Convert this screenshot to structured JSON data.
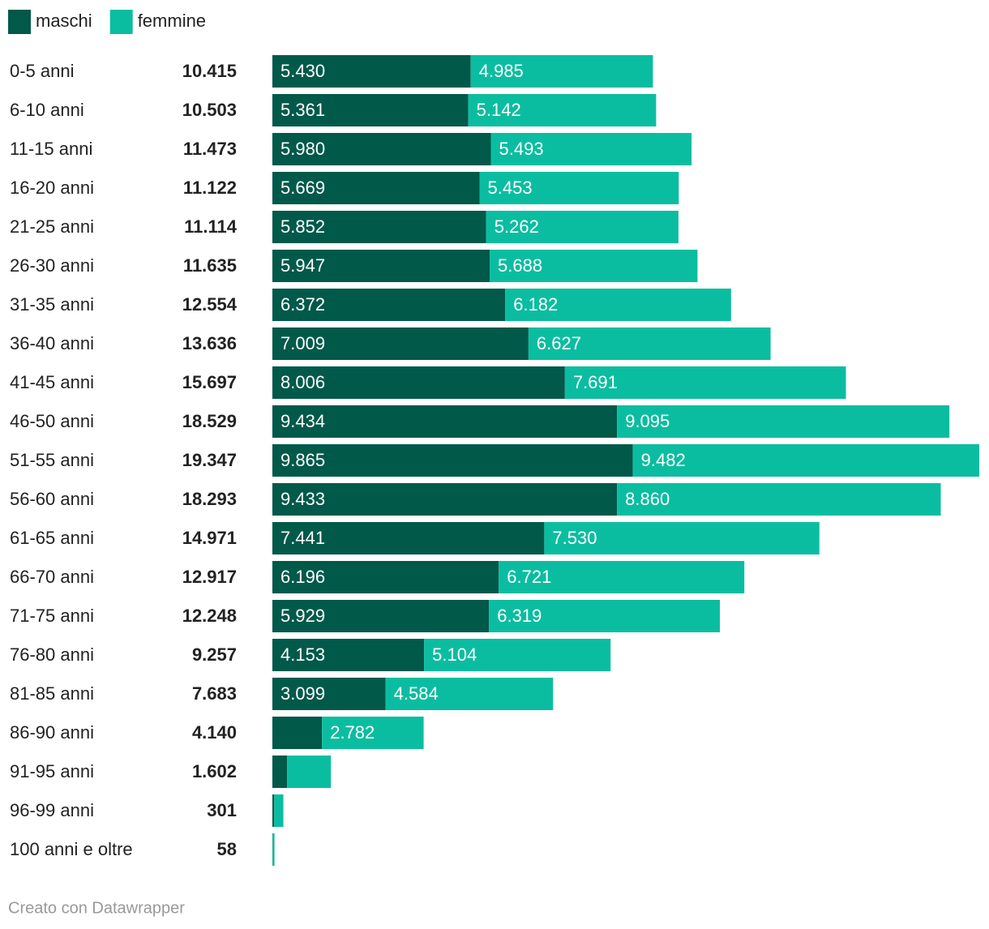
{
  "chart_data": {
    "type": "stacked-bar-horizontal",
    "categories": [
      "0-5 anni",
      "6-10 anni",
      "11-15 anni",
      "16-20 anni",
      "21-25 anni",
      "26-30 anni",
      "31-35 anni",
      "36-40 anni",
      "41-45 anni",
      "46-50 anni",
      "51-55 anni",
      "56-60 anni",
      "61-65 anni",
      "66-70 anni",
      "71-75 anni",
      "76-80 anni",
      "81-85 anni",
      "86-90 anni",
      "91-95 anni",
      "96-99 anni",
      "100 anni e oltre"
    ],
    "series": [
      {
        "name": "maschi",
        "color": "#01594a",
        "values": [
          5430,
          5361,
          5980,
          5669,
          5852,
          5947,
          6372,
          7009,
          8006,
          9434,
          9865,
          9433,
          7441,
          6196,
          5929,
          4153,
          3099,
          1358,
          402,
          50,
          8
        ],
        "value_labels": [
          "5.430",
          "5.361",
          "5.980",
          "5.669",
          "5.852",
          "5.947",
          "6.372",
          "7.009",
          "8.006",
          "9.434",
          "9.865",
          "9.433",
          "7.441",
          "6.196",
          "5.929",
          "4.153",
          "3.099",
          null,
          null,
          null,
          null
        ]
      },
      {
        "name": "femmine",
        "color": "#0bbda0",
        "values": [
          4985,
          5142,
          5493,
          5453,
          5262,
          5688,
          6182,
          6627,
          7691,
          9095,
          9482,
          8860,
          7530,
          6721,
          6319,
          5104,
          4584,
          2782,
          1200,
          251,
          50
        ],
        "value_labels": [
          "4.985",
          "5.142",
          "5.493",
          "5.453",
          "5.262",
          "5.688",
          "6.182",
          "6.627",
          "7.691",
          "9.095",
          "9.482",
          "8.860",
          "7.530",
          "6.721",
          "6.319",
          "5.104",
          "4.584",
          "2.782",
          null,
          null,
          null
        ]
      }
    ],
    "totals": {
      "values": [
        10415,
        10503,
        11473,
        11122,
        11114,
        11635,
        12554,
        13636,
        15697,
        18529,
        19347,
        18293,
        14971,
        12917,
        12248,
        9257,
        7683,
        4140,
        1602,
        301,
        58
      ],
      "labels": [
        "10.415",
        "10.503",
        "11.473",
        "11.122",
        "11.114",
        "11.635",
        "12.554",
        "13.636",
        "15.697",
        "18.529",
        "19.347",
        "18.293",
        "14.971",
        "12.917",
        "12.248",
        "9.257",
        "7.683",
        "4.140",
        "1.602",
        "301",
        "58"
      ]
    },
    "footer": "Creato con Datawrapper"
  }
}
